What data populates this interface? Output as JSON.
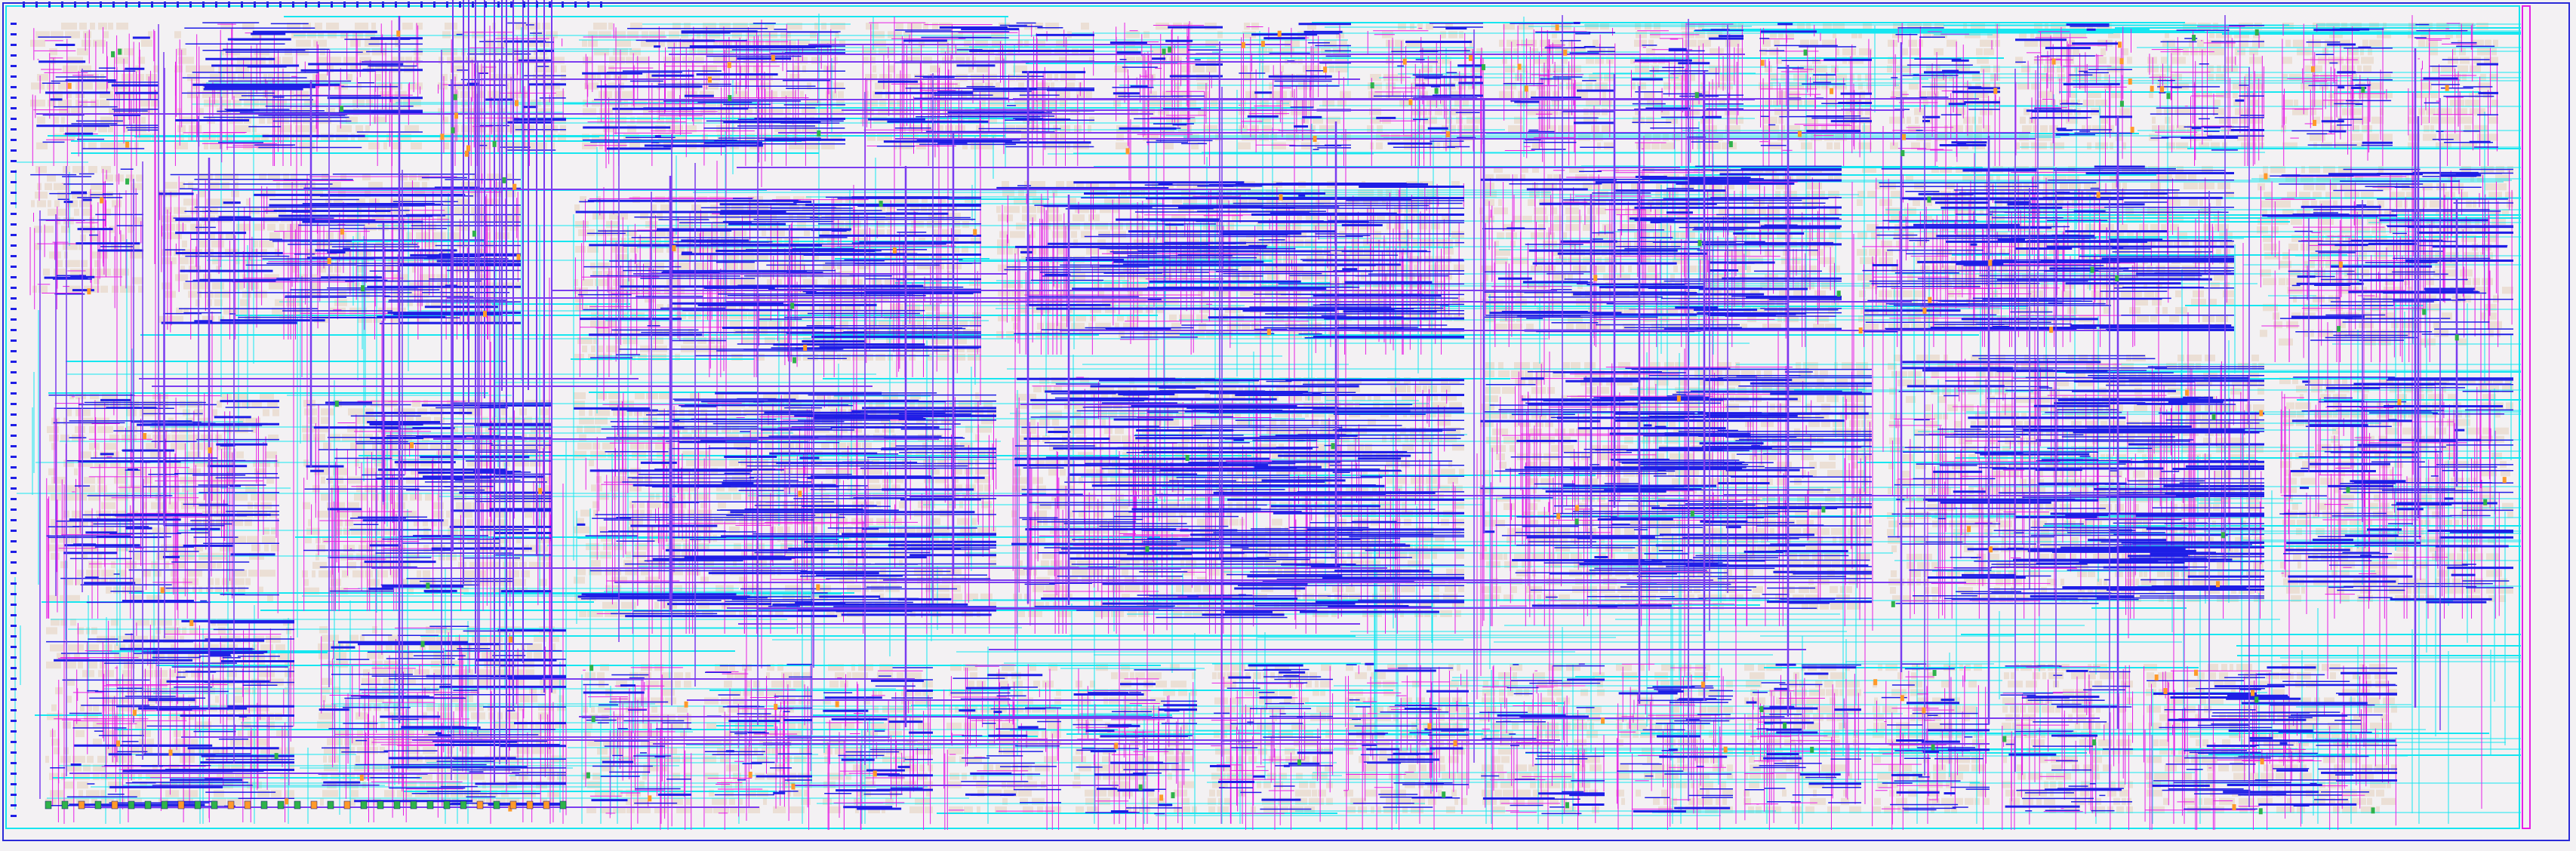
{
  "view": {
    "background": "#f3f1f3",
    "die_outline_color": "#2a2ad8",
    "colors": {
      "metal1_blue": "#1e1ee6",
      "metal2_cyan": "#16e6f0",
      "metal3_magenta": "#e61ee6",
      "metal4_violet": "#7a3cf0",
      "cell_fill": "#e9dccf",
      "pin_orange": "#ff9a2a",
      "pin_green": "#2fb24a",
      "via_dark": "#0a0a7a"
    }
  },
  "layout": {
    "type": "placed-and-routed chip layout (no visible text labels)"
  }
}
